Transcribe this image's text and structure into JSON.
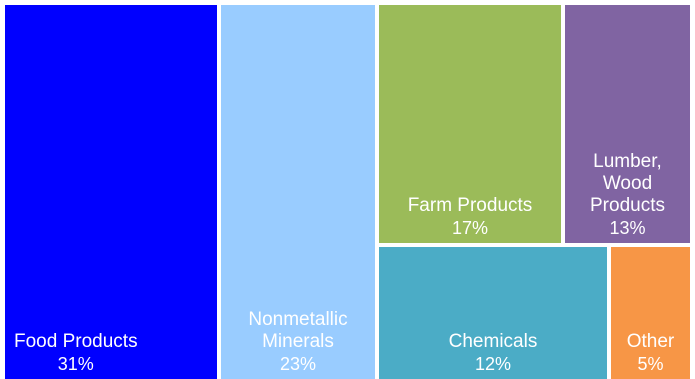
{
  "chart_data": {
    "type": "treemap",
    "items": [
      {
        "label": "Food Products",
        "value": "31%",
        "share": 31,
        "color": "#0000ff"
      },
      {
        "label": "Nonmetallic\nMinerals",
        "value": "23%",
        "share": 23,
        "color": "#99ccff"
      },
      {
        "label": "Farm Products",
        "value": "17%",
        "share": 17,
        "color": "#9bbb59"
      },
      {
        "label": "Lumber,\nWood\nProducts",
        "value": "13%",
        "share": 13,
        "color": "#8064a2"
      },
      {
        "label": "Chemicals",
        "value": "12%",
        "share": 12,
        "color": "#4bacc6"
      },
      {
        "label": "Other",
        "value": "5%",
        "share": 5,
        "color": "#f79646"
      }
    ]
  }
}
